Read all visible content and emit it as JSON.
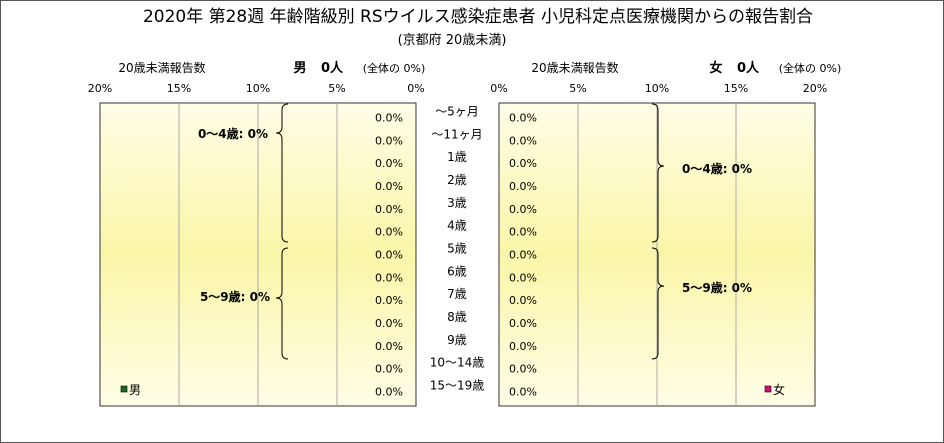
{
  "title": "2020年 第28週 年齢階級別 RSウイルス感染症患者 小児科定点医療機関からの報告割合",
  "subtitle": "(京都府 20歳未満)",
  "left_panel": {
    "header_left": "20歳未満報告数",
    "header_sex": "男",
    "header_count": "0人",
    "header_share": "(全体の  0%)",
    "brace_labels": [
      "0～4歳: 0%",
      "5～9歳: 0%"
    ],
    "legend_label": "男",
    "legend_color": "#1e6b1e"
  },
  "right_panel": {
    "header_left": "20歳未満報告数",
    "header_sex": "女",
    "header_count": "0人",
    "header_share": "(全体の  0%)",
    "brace_labels": [
      "0～4歳: 0%",
      "5～9歳: 0%"
    ],
    "legend_label": "女",
    "legend_color": "#cc1177"
  },
  "chart_data": {
    "type": "bar",
    "orientation": "horizontal",
    "categories": [
      "～5ヶ月",
      "～11ヶ月",
      "1歳",
      "2歳",
      "3歳",
      "4歳",
      "5歳",
      "6歳",
      "7歳",
      "8歳",
      "9歳",
      "10～14歳",
      "15～19歳"
    ],
    "series": [
      {
        "name": "男",
        "values": [
          0,
          0,
          0,
          0,
          0,
          0,
          0,
          0,
          0,
          0,
          0,
          0,
          0
        ],
        "labels": [
          "0.0%",
          "0.0%",
          "0.0%",
          "0.0%",
          "0.0%",
          "0.0%",
          "0.0%",
          "0.0%",
          "0.0%",
          "0.0%",
          "0.0%",
          "0.0%",
          "0.0%"
        ],
        "color": "#1e6b1e"
      },
      {
        "name": "女",
        "values": [
          0,
          0,
          0,
          0,
          0,
          0,
          0,
          0,
          0,
          0,
          0,
          0,
          0
        ],
        "labels": [
          "0.0%",
          "0.0%",
          "0.0%",
          "0.0%",
          "0.0%",
          "0.0%",
          "0.0%",
          "0.0%",
          "0.0%",
          "0.0%",
          "0.0%",
          "0.0%",
          "0.0%"
        ],
        "color": "#cc1177"
      }
    ],
    "left_ticks": [
      "20%",
      "15%",
      "10%",
      "5%",
      "0%"
    ],
    "right_ticks": [
      "0%",
      "5%",
      "10%",
      "15%",
      "20%"
    ],
    "xlim": [
      0,
      20
    ],
    "grid": true,
    "plot_background": [
      "#fffde6",
      "#faf6a8"
    ]
  }
}
